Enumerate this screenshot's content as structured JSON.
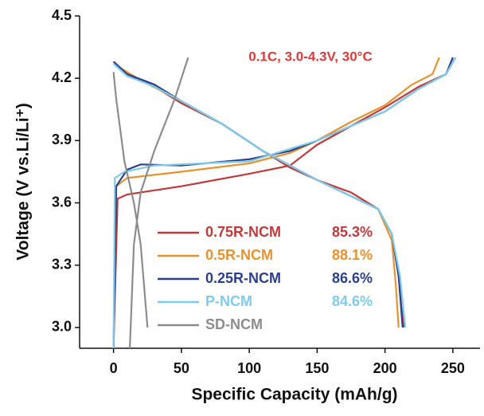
{
  "chart_data": {
    "type": "line",
    "annotation": "0.1C, 3.0-4.3V, 30°C",
    "xlabel": "Specific Capacity (mAh/g)",
    "ylabel": "Voltage (V vs.Li/Li⁺)",
    "xlim": [
      -25,
      270
    ],
    "xticks": [
      0,
      50,
      100,
      150,
      200,
      250
    ],
    "ylim": [
      2.9,
      4.5
    ],
    "yticks": [
      {
        "value": 3,
        "label": "3.0"
      },
      {
        "value": 3.3,
        "label": "3.3"
      },
      {
        "value": 3.6,
        "label": "3.6"
      },
      {
        "value": 3.9,
        "label": "3.9"
      },
      {
        "value": 4.2,
        "label": "4.2"
      },
      {
        "value": 4.5,
        "label": "4.5"
      }
    ],
    "series": [
      {
        "name": "0.75R-NCM",
        "note": "85.3%",
        "color": "#c0393b",
        "x": [
          0,
          3,
          10,
          50,
          100,
          130,
          150,
          175,
          200,
          225,
          245,
          252,
          null,
          0,
          10,
          30,
          50,
          80,
          110,
          130,
          150,
          175,
          195,
          205,
          210,
          212,
          214
        ],
        "values": [
          2.9,
          3.62,
          3.64,
          3.68,
          3.74,
          3.78,
          3.88,
          3.97,
          4.06,
          4.16,
          4.22,
          4.3,
          null,
          4.28,
          4.22,
          4.16,
          4.08,
          3.98,
          3.85,
          3.77,
          3.71,
          3.65,
          3.57,
          3.45,
          3.25,
          3.1,
          3.0
        ]
      },
      {
        "name": "0.5R-NCM",
        "note": "88.1%",
        "color": "#e8922e",
        "x": [
          0,
          2,
          10,
          50,
          100,
          130,
          150,
          175,
          200,
          220,
          235,
          240,
          null,
          0,
          20,
          50,
          80,
          110,
          150,
          195,
          205,
          208,
          210
        ],
        "values": [
          2.9,
          3.68,
          3.72,
          3.75,
          3.79,
          3.84,
          3.9,
          3.99,
          4.07,
          4.17,
          4.22,
          4.3,
          null,
          4.27,
          4.19,
          4.09,
          3.98,
          3.85,
          3.71,
          3.57,
          3.42,
          3.2,
          3.0
        ]
      },
      {
        "name": "0.25R-NCM",
        "note": "86.6%",
        "color": "#2b3f8a",
        "x": [
          0,
          2,
          10,
          20,
          50,
          100,
          130,
          150,
          175,
          200,
          225,
          245,
          250,
          null,
          0,
          10,
          30,
          50,
          80,
          110,
          150,
          195,
          205,
          210,
          213
        ],
        "values": [
          2.9,
          3.68,
          3.76,
          3.785,
          3.78,
          3.81,
          3.85,
          3.9,
          3.97,
          4.04,
          4.15,
          4.22,
          4.3,
          null,
          4.28,
          4.22,
          4.17,
          4.09,
          3.98,
          3.85,
          3.71,
          3.57,
          3.45,
          3.25,
          3.0
        ]
      },
      {
        "name": "P-NCM",
        "note": "84.6%",
        "color": "#7ecbea",
        "x": [
          0,
          1,
          8,
          30,
          100,
          150,
          200,
          225,
          245,
          252,
          null,
          0,
          10,
          30,
          50,
          80,
          110,
          150,
          195,
          205,
          211,
          215
        ],
        "values": [
          2.9,
          3.72,
          3.75,
          3.78,
          3.8,
          3.9,
          4.04,
          4.15,
          4.22,
          4.3,
          null,
          4.27,
          4.21,
          4.16,
          4.09,
          3.98,
          3.85,
          3.71,
          3.57,
          3.45,
          3.25,
          3.0
        ]
      },
      {
        "name": "SD-NCM",
        "color": "#8c8c8c",
        "x": [
          12,
          15,
          20,
          30,
          45,
          55,
          null,
          0,
          2,
          8,
          15,
          20,
          25
        ],
        "values": [
          2.9,
          3.4,
          3.65,
          3.85,
          4.1,
          4.3,
          null,
          4.23,
          4.1,
          3.8,
          3.6,
          3.4,
          3.0
        ]
      }
    ]
  }
}
